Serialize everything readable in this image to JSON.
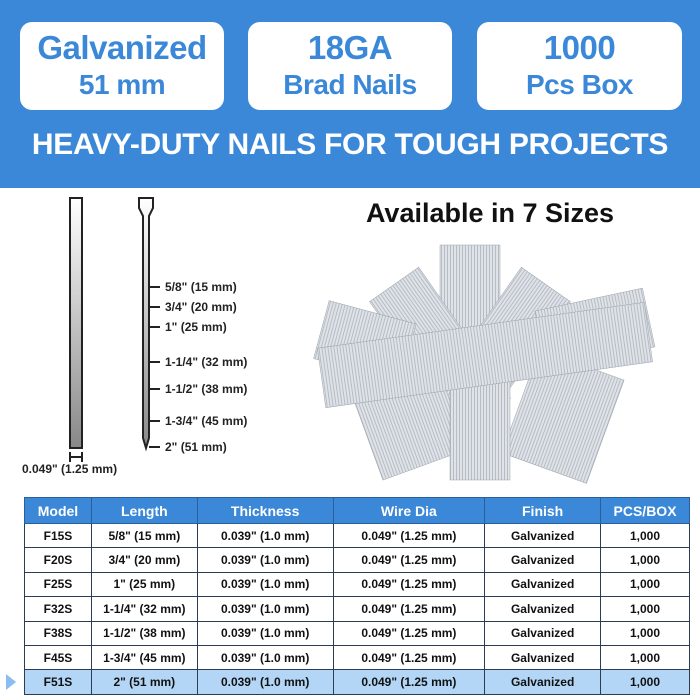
{
  "badges": [
    {
      "line1": "Galvanized",
      "line2": "51 mm"
    },
    {
      "line1": "18GA",
      "line2": "Brad Nails"
    },
    {
      "line1": "1000",
      "line2": "Pcs Box"
    }
  ],
  "tagline": "HEAVY-DUTY NAILS FOR TOUGH PROJECTS",
  "available": "Available in 7 Sizes",
  "diagram": {
    "diameter": "0.049\" (1.25 mm)",
    "ticks": [
      "5/8\" (15 mm)",
      "3/4\" (20 mm)",
      "1\" (25 mm)",
      "1-1/4\" (32 mm)",
      "1-1/2\" (38 mm)",
      "1-3/4\" (45 mm)",
      "2\" (51 mm)"
    ]
  },
  "colors": {
    "brand": "#3b88d8",
    "highlight": "#b3d6f6"
  },
  "table": {
    "headers": [
      "Model",
      "Length",
      "Thickness",
      "Wire Dia",
      "Finish",
      "PCS/BOX"
    ],
    "rows": [
      [
        "F15S",
        "5/8\" (15 mm)",
        "0.039\" (1.0 mm)",
        "0.049\" (1.25 mm)",
        "Galvanized",
        "1,000"
      ],
      [
        "F20S",
        "3/4\" (20 mm)",
        "0.039\" (1.0 mm)",
        "0.049\" (1.25 mm)",
        "Galvanized",
        "1,000"
      ],
      [
        "F25S",
        "1\" (25 mm)",
        "0.039\" (1.0 mm)",
        "0.049\" (1.25 mm)",
        "Galvanized",
        "1,000"
      ],
      [
        "F32S",
        "1-1/4\" (32 mm)",
        "0.039\" (1.0 mm)",
        "0.049\" (1.25 mm)",
        "Galvanized",
        "1,000"
      ],
      [
        "F38S",
        "1-1/2\" (38 mm)",
        "0.039\" (1.0 mm)",
        "0.049\" (1.25 mm)",
        "Galvanized",
        "1,000"
      ],
      [
        "F45S",
        "1-3/4\" (45 mm)",
        "0.039\" (1.0 mm)",
        "0.049\" (1.25 mm)",
        "Galvanized",
        "1,000"
      ],
      [
        "F51S",
        "2\" (51 mm)",
        "0.039\" (1.0 mm)",
        "0.049\" (1.25 mm)",
        "Galvanized",
        "1,000"
      ]
    ],
    "selected_row": 6
  }
}
